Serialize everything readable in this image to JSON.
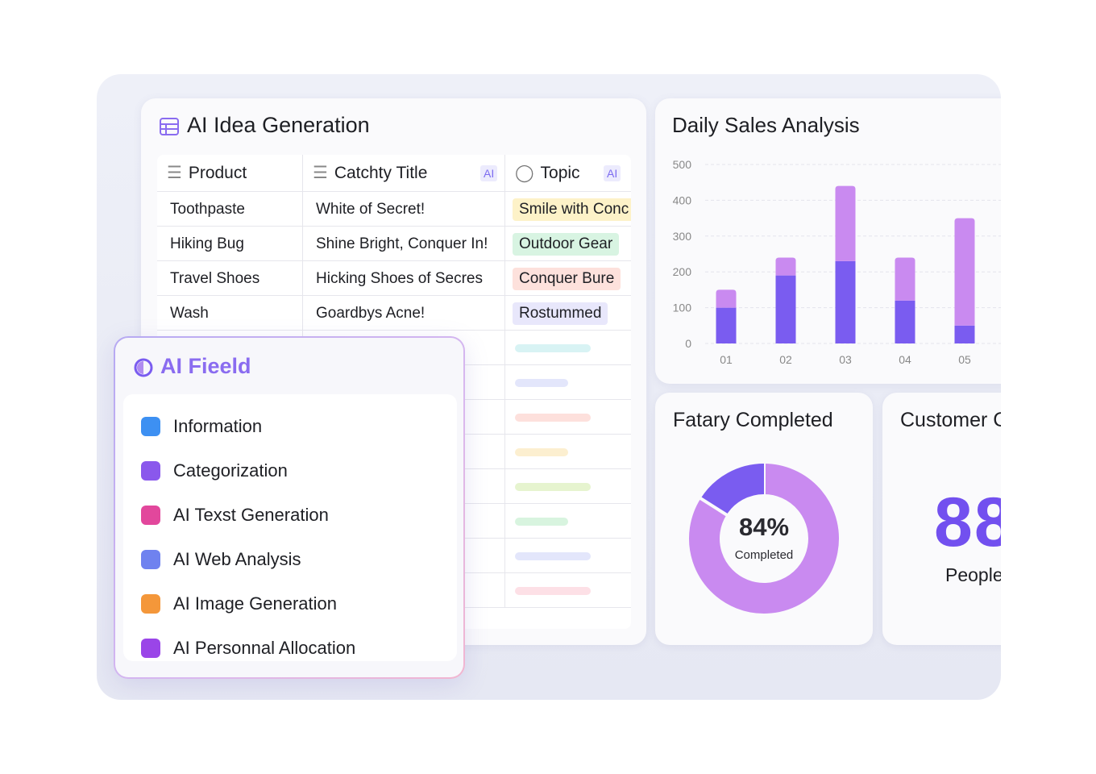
{
  "idea_table": {
    "title": "AI Idea Generation",
    "columns": [
      {
        "label": "Product"
      },
      {
        "label": "Catchty Title",
        "badge": "AI"
      },
      {
        "label": "Topic",
        "badge": "AI"
      }
    ],
    "rows": [
      [
        "Toothpaste",
        "White of Secret!",
        "Smile with Conc"
      ],
      [
        "Hiking Bug",
        "Shine Bright, Conquer In!",
        "Outdoor Gear"
      ],
      [
        "Travel Shoes",
        "Hicking Shoes of Secres",
        "Conquer Bure"
      ],
      [
        "Wash",
        "Goardbys Acne!",
        "Rostummed"
      ]
    ]
  },
  "ai_field": {
    "title": "AI Fieeld",
    "items": [
      "Information",
      "Categorization",
      "AI Texst Generation",
      "AI Web Analysis",
      "AI Image Generation",
      "AI Personnal Allocation"
    ]
  },
  "chart_data": [
    {
      "type": "bar",
      "stacked": true,
      "title": "Daily Sales Analysis",
      "categories": [
        "01",
        "02",
        "03",
        "04",
        "05"
      ],
      "series": [
        {
          "color": "#7a5cf0",
          "values": [
            100,
            190,
            230,
            120,
            50
          ]
        },
        {
          "color": "#c98af0",
          "values": [
            50,
            50,
            210,
            120,
            300
          ]
        }
      ],
      "ylim": [
        0,
        500
      ],
      "yticks": [
        0,
        100,
        200,
        300,
        400,
        500
      ],
      "grid": true
    },
    {
      "type": "pie",
      "title": "Fatary Completed",
      "values": [
        84,
        16
      ],
      "value_labels": [
        "84%",
        null
      ],
      "colors": [
        "#c98af0",
        "#7a5cf0"
      ],
      "center_text": "Completed"
    }
  ],
  "customer_card": {
    "title": "Customer C",
    "value": 88,
    "unit": "People"
  }
}
